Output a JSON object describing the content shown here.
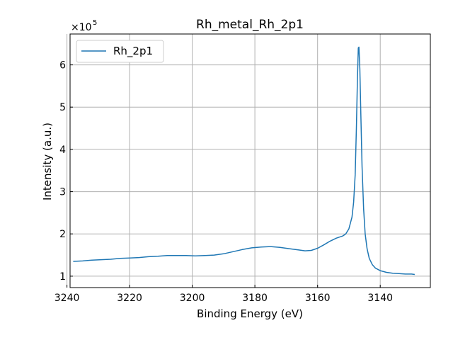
{
  "chart_data": {
    "type": "line",
    "title": "Rh_metal_Rh_2p1",
    "xlabel": "Binding Energy (eV)",
    "ylabel": "Intensity (a.u.)",
    "y_scale_label": "×10",
    "y_scale_exponent": "5",
    "xlim": [
      3239,
      3124
    ],
    "ylim": [
      0.73,
      6.73
    ],
    "x_reversed": true,
    "grid": true,
    "legend_position": "top-left",
    "x_ticks": [
      3240,
      3220,
      3200,
      3180,
      3160,
      3140
    ],
    "y_ticks": [
      1,
      2,
      3,
      4,
      5,
      6
    ],
    "series": [
      {
        "name": "Rh_2p1",
        "color": "#1f77b4",
        "points": [
          [
            3238,
            1.35
          ],
          [
            3235,
            1.36
          ],
          [
            3232,
            1.38
          ],
          [
            3229,
            1.39
          ],
          [
            3226,
            1.4
          ],
          [
            3223,
            1.42
          ],
          [
            3220,
            1.43
          ],
          [
            3217,
            1.44
          ],
          [
            3214,
            1.46
          ],
          [
            3211,
            1.47
          ],
          [
            3208,
            1.49
          ],
          [
            3205,
            1.49
          ],
          [
            3202,
            1.49
          ],
          [
            3199,
            1.48
          ],
          [
            3196,
            1.49
          ],
          [
            3193,
            1.5
          ],
          [
            3190,
            1.53
          ],
          [
            3187,
            1.58
          ],
          [
            3184,
            1.63
          ],
          [
            3181,
            1.67
          ],
          [
            3178,
            1.69
          ],
          [
            3175,
            1.7
          ],
          [
            3172,
            1.68
          ],
          [
            3169,
            1.65
          ],
          [
            3166,
            1.62
          ],
          [
            3164,
            1.6
          ],
          [
            3162,
            1.61
          ],
          [
            3160,
            1.66
          ],
          [
            3158,
            1.74
          ],
          [
            3156,
            1.83
          ],
          [
            3154,
            1.9
          ],
          [
            3152,
            1.95
          ],
          [
            3151,
            2.0
          ],
          [
            3150,
            2.12
          ],
          [
            3149,
            2.4
          ],
          [
            3148.5,
            2.75
          ],
          [
            3148,
            3.4
          ],
          [
            3147.6,
            4.5
          ],
          [
            3147.3,
            5.6
          ],
          [
            3147.0,
            6.4
          ],
          [
            3146.8,
            6.42
          ],
          [
            3146.5,
            5.9
          ],
          [
            3146.2,
            4.9
          ],
          [
            3145.8,
            3.6
          ],
          [
            3145.3,
            2.6
          ],
          [
            3144.8,
            2.0
          ],
          [
            3144.2,
            1.65
          ],
          [
            3143.5,
            1.42
          ],
          [
            3142.5,
            1.27
          ],
          [
            3141.5,
            1.19
          ],
          [
            3140,
            1.13
          ],
          [
            3138,
            1.09
          ],
          [
            3136,
            1.07
          ],
          [
            3134,
            1.06
          ],
          [
            3132,
            1.05
          ],
          [
            3130,
            1.05
          ],
          [
            3129,
            1.04
          ]
        ]
      }
    ]
  }
}
